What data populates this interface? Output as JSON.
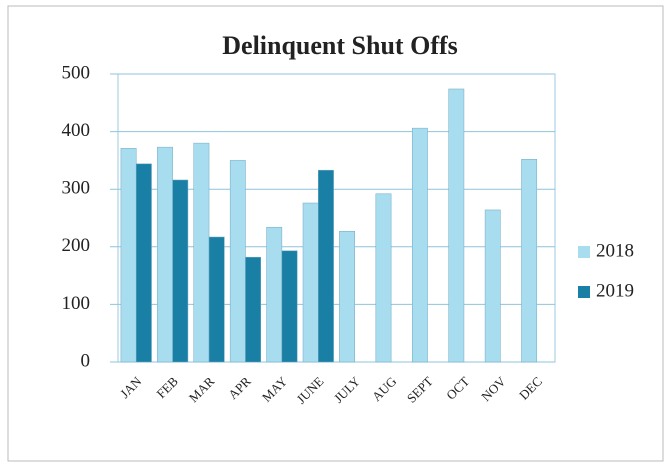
{
  "chart_data": {
    "type": "bar",
    "title": "Delinquent Shut Offs",
    "categories": [
      "JAN",
      "FEB",
      "MAR",
      "APR",
      "MAY",
      "JUNE",
      "JULY",
      "AUG",
      "SEPT",
      "OCT",
      "NOV",
      "DEC"
    ],
    "series": [
      {
        "name": "2018",
        "color": "#a8dcef",
        "values": [
          371,
          373,
          380,
          350,
          234,
          276,
          227,
          292,
          406,
          474,
          264,
          352
        ]
      },
      {
        "name": "2019",
        "color": "#1a7fa5",
        "values": [
          344,
          316,
          217,
          182,
          193,
          333,
          null,
          null,
          null,
          null,
          null,
          null
        ]
      }
    ],
    "ylim": [
      0,
      500
    ],
    "yticks": [
      0,
      100,
      200,
      300,
      400,
      500
    ],
    "grid": true,
    "legend": "right"
  }
}
